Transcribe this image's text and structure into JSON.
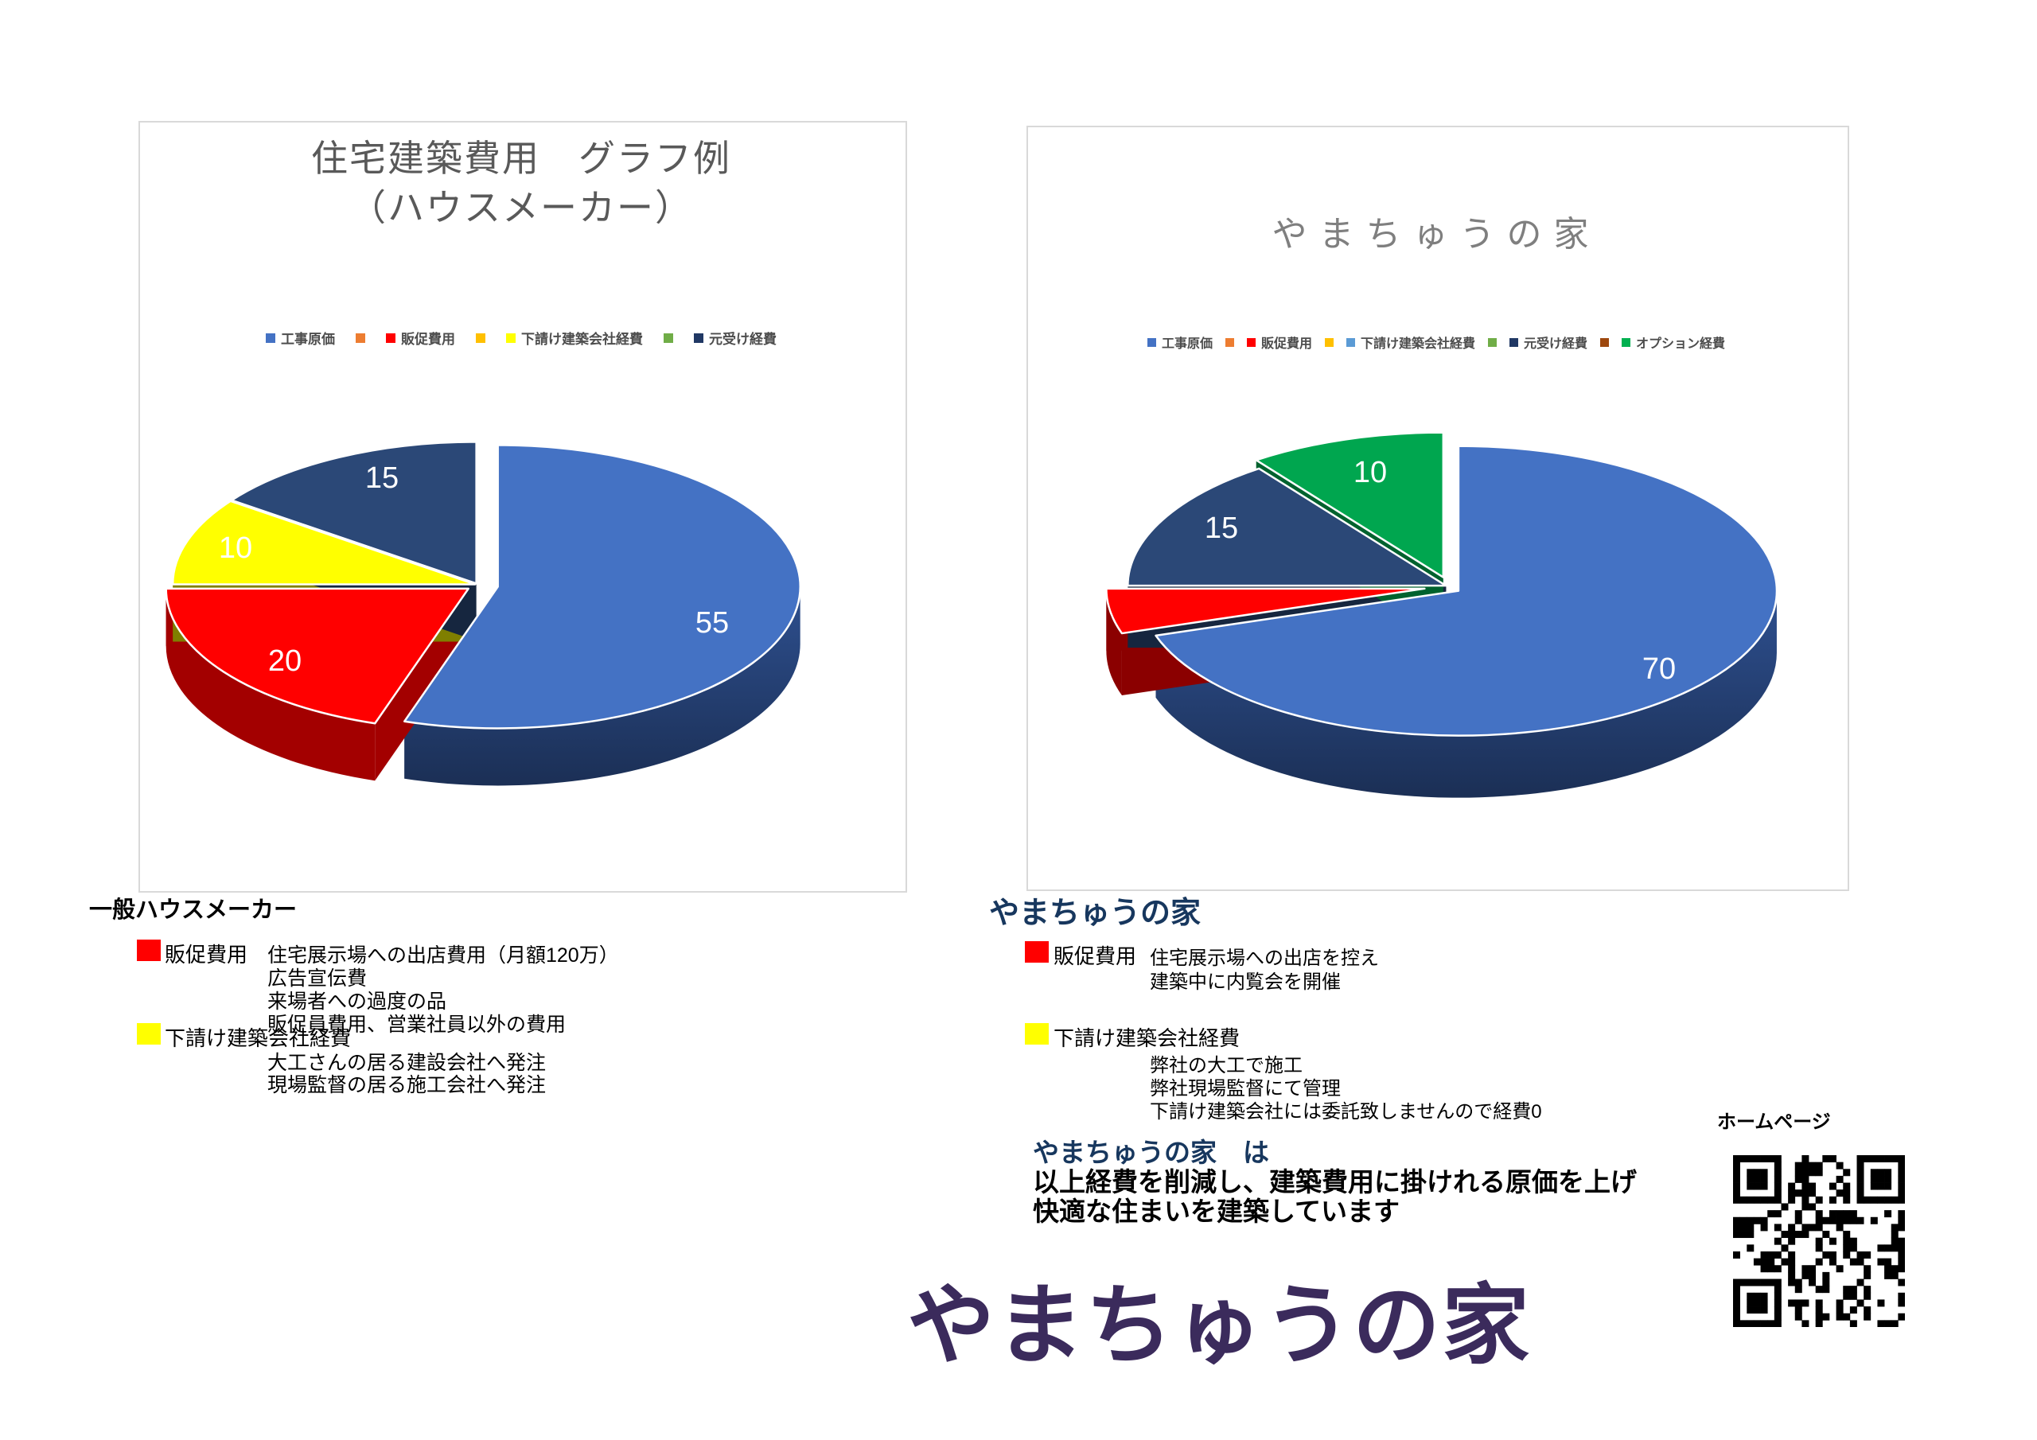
{
  "left_panel": {
    "title_line1": "住宅建築費用　グラフ例",
    "title_line2": "（ハウスメーカー）",
    "legend": [
      {
        "label": "工事原価",
        "color": "#4472C4"
      },
      {
        "label": "",
        "color": "#ED7D31"
      },
      {
        "label": "販促費用",
        "color": "#FF0000"
      },
      {
        "label": "",
        "color": "#FFC000"
      },
      {
        "label": "下請け建築会社経費",
        "color": "#FFFF00"
      },
      {
        "label": "",
        "color": "#70AD47"
      },
      {
        "label": "元受け経費",
        "color": "#203864"
      }
    ]
  },
  "right_panel": {
    "title": "やまちゅうの家",
    "legend": [
      {
        "label": "工事原価",
        "color": "#4472C4"
      },
      {
        "label": "",
        "color": "#ED7D31"
      },
      {
        "label": "販促費用",
        "color": "#FF0000"
      },
      {
        "label": "",
        "color": "#FFC000"
      },
      {
        "label": "下請け建築会社経費",
        "color": "#5B9BD5"
      },
      {
        "label": "",
        "color": "#70AD47"
      },
      {
        "label": "元受け経費",
        "color": "#203864"
      },
      {
        "label": "",
        "color": "#9E480E"
      },
      {
        "label": "オプション経費",
        "color": "#00B050"
      }
    ]
  },
  "chart_data": [
    {
      "type": "pie",
      "title": "住宅建築費用　グラフ例（ハウスメーカー）",
      "categories": [
        "工事原価",
        "販促費用",
        "下請け建築会社経費",
        "元受け経費"
      ],
      "values": [
        55,
        20,
        10,
        15
      ],
      "colors": [
        "#4472C4",
        "#FF0000",
        "#FFFF00",
        "#2B4877"
      ],
      "data_labels": [
        "55",
        "20",
        "10",
        "15"
      ],
      "legend_position": "top",
      "style": "3d-exploded"
    },
    {
      "type": "pie",
      "title": "やまちゅうの家",
      "categories": [
        "工事原価",
        "販促費用",
        "元受け経費",
        "オプション経費"
      ],
      "values": [
        70,
        5,
        15,
        10
      ],
      "colors": [
        "#4472C4",
        "#FF0000",
        "#2B4877",
        "#00A64F"
      ],
      "data_labels": [
        "70",
        "",
        "15",
        "10"
      ],
      "legend_position": "top",
      "style": "3d-exploded"
    }
  ],
  "left_notes": {
    "heading": "一般ハウスメーカー",
    "items": [
      {
        "swatch": "#FF0000",
        "label": "販促費用",
        "lines": [
          "住宅展示場への出店費用（月額120万）",
          "広告宣伝費",
          "来場者への過度の品",
          "販促員費用、営業社員以外の費用"
        ]
      },
      {
        "swatch": "#FFFF00",
        "label": "下請け建築会社経費",
        "lines": [
          "大工さんの居る建設会社へ発注",
          "現場監督の居る施工会社へ発注"
        ]
      }
    ]
  },
  "right_notes": {
    "heading": "やまちゅうの家",
    "items": [
      {
        "swatch": "#FF0000",
        "label": "販促費用",
        "lines": [
          "住宅展示場への出店を控え",
          "建築中に内覧会を開催"
        ]
      },
      {
        "swatch": "#FFFF00",
        "label": "下請け建築会社経費",
        "lines": [
          "弊社の大工で施工",
          "弊社現場監督にて管理",
          "下請け建築会社には委託致しませんので経費0"
        ]
      }
    ]
  },
  "statement": {
    "lead": "やまちゅうの家　は",
    "lines": [
      "以上経費を削減し、建築費用に掛けれる原価を上げ",
      "快適な住まいを建築しています"
    ]
  },
  "brand": "やまちゅうの家",
  "homepage": {
    "label": "ホームページ"
  }
}
